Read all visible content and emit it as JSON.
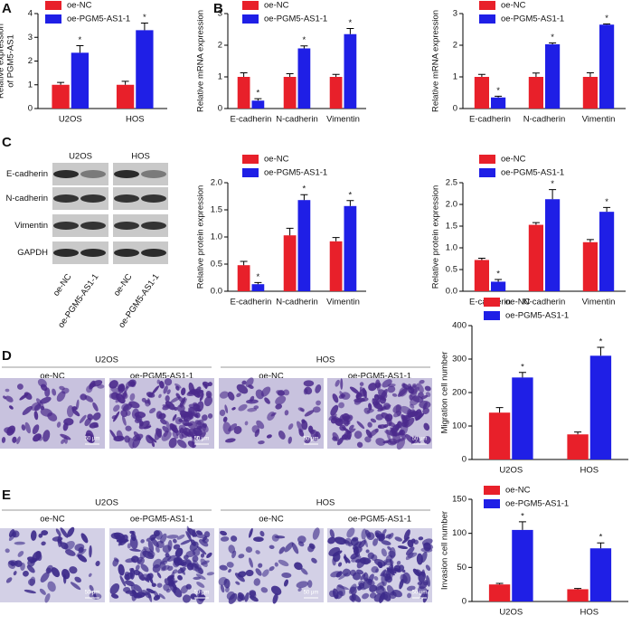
{
  "panel_letters": [
    "A",
    "B",
    "C",
    "D",
    "E"
  ],
  "blot": {
    "cell_lines": [
      "U2OS",
      "HOS"
    ],
    "proteins": [
      "E-cadherin",
      "N-cadherin",
      "Vimentin",
      "GAPDH"
    ],
    "lanes": [
      "oe-NC",
      "oe-PGM5-AS1-1",
      "oe-NC",
      "oe-PGM5-AS1-1"
    ]
  },
  "migration": {
    "cell_lines": [
      "U2OS",
      "HOS"
    ],
    "conditions": [
      "oe-NC",
      "oe-PGM5-AS1-1",
      "oe-NC",
      "oe-PGM5-AS1-1"
    ],
    "scale_bar": "50 μm"
  },
  "invasion": {
    "cell_lines": [
      "U2OS",
      "HOS"
    ],
    "conditions": [
      "oe-NC",
      "oe-PGM5-AS1-1",
      "oe-NC",
      "oe-PGM5-AS1-1"
    ],
    "scale_bar": "50 μm"
  },
  "chart_data": [
    {
      "type": "bar",
      "y_label": [
        "Relative expression",
        "of PGM5-AS1"
      ],
      "categories": [
        "U2OS",
        "HOS"
      ],
      "star_label": "*",
      "series": [
        {
          "name": "oe-NC",
          "color": "#e8202a",
          "values": [
            1.0,
            1.0
          ],
          "errors": [
            0.1,
            0.15
          ],
          "starred": false
        },
        {
          "name": "oe-PGM5-AS1-1",
          "color": "#1f1fe6",
          "values": [
            2.35,
            3.3
          ],
          "errors": [
            0.3,
            0.3
          ],
          "starred": true
        }
      ],
      "ylim": [
        0,
        4
      ],
      "yticks": [
        0,
        1,
        2,
        3,
        4
      ]
    },
    {
      "type": "bar",
      "y_label": [
        "Relative mRNA expression"
      ],
      "categories": [
        "E-cadherin",
        "N-cadherin",
        "Vimentin"
      ],
      "star_label": "*",
      "series": [
        {
          "name": "oe-NC",
          "color": "#e8202a",
          "values": [
            1.0,
            1.0,
            1.0
          ],
          "errors": [
            0.13,
            0.1,
            0.08
          ],
          "starred": false
        },
        {
          "name": "oe-PGM5-AS1-1",
          "color": "#1f1fe6",
          "values": [
            0.25,
            1.9,
            2.35
          ],
          "errors": [
            0.06,
            0.08,
            0.18
          ],
          "starred": true
        }
      ],
      "ylim": [
        0,
        3
      ],
      "yticks": [
        0,
        1,
        2,
        3
      ]
    },
    {
      "type": "bar",
      "y_label": [
        "Relative mRNA expression"
      ],
      "categories": [
        "E-cadherin",
        "N-cadherin",
        "Vimentin"
      ],
      "star_label": "*",
      "series": [
        {
          "name": "oe-NC",
          "color": "#e8202a",
          "values": [
            1.0,
            1.0,
            1.0
          ],
          "errors": [
            0.08,
            0.12,
            0.13
          ],
          "starred": false
        },
        {
          "name": "oe-PGM5-AS1-1",
          "color": "#1f1fe6",
          "values": [
            0.35,
            2.03,
            2.65
          ],
          "errors": [
            0.04,
            0.04,
            0.02
          ],
          "starred": true
        }
      ],
      "ylim": [
        0,
        3
      ],
      "yticks": [
        0,
        1,
        2,
        3
      ]
    },
    {
      "type": "bar",
      "y_label": [
        "Relative protein expression"
      ],
      "categories": [
        "E-cadherin",
        "N-cadherin",
        "Vimentin"
      ],
      "star_label": "*",
      "series": [
        {
          "name": "oe-NC",
          "color": "#e8202a",
          "values": [
            0.48,
            1.03,
            0.92
          ],
          "errors": [
            0.07,
            0.13,
            0.07
          ],
          "starred": false
        },
        {
          "name": "oe-PGM5-AS1-1",
          "color": "#1f1fe6",
          "values": [
            0.13,
            1.68,
            1.57
          ],
          "errors": [
            0.03,
            0.1,
            0.1
          ],
          "starred": true
        }
      ],
      "ylim": [
        0,
        2
      ],
      "yticks": [
        {
          "value": 0,
          "label": "0.0"
        },
        0.5,
        {
          "value": 1,
          "label": "1.0"
        },
        1.5,
        {
          "value": 2,
          "label": "2.0"
        }
      ]
    },
    {
      "type": "bar",
      "y_label": [
        "Relative protein expression"
      ],
      "categories": [
        "E-cadherin",
        "N-cadherin",
        "Vimentin"
      ],
      "star_label": "*",
      "series": [
        {
          "name": "oe-NC",
          "color": "#e8202a",
          "values": [
            0.72,
            1.53,
            1.13
          ],
          "errors": [
            0.04,
            0.05,
            0.06
          ],
          "starred": false
        },
        {
          "name": "oe-PGM5-AS1-1",
          "color": "#1f1fe6",
          "values": [
            0.22,
            2.12,
            1.83
          ],
          "errors": [
            0.05,
            0.22,
            0.1
          ],
          "starred": true
        }
      ],
      "ylim": [
        0,
        2.5
      ],
      "yticks": [
        {
          "value": 0,
          "label": "0.0"
        },
        0.5,
        {
          "value": 1,
          "label": "1.0"
        },
        1.5,
        {
          "value": 2,
          "label": "2.0"
        },
        2.5
      ]
    },
    {
      "type": "bar",
      "y_label": [
        "Migration cell number"
      ],
      "categories": [
        "U2OS",
        "HOS"
      ],
      "star_label": "*",
      "series": [
        {
          "name": "oe-NC",
          "color": "#e8202a",
          "values": [
            140,
            75
          ],
          "errors": [
            15,
            7
          ],
          "starred": false
        },
        {
          "name": "oe-PGM5-AS1-1",
          "color": "#1f1fe6",
          "values": [
            245,
            310
          ],
          "errors": [
            15,
            25
          ],
          "starred": true
        }
      ],
      "ylim": [
        0,
        400
      ],
      "yticks": [
        0,
        100,
        200,
        300,
        400
      ]
    },
    {
      "type": "bar",
      "y_label": [
        "Invasion cell number"
      ],
      "categories": [
        "U2OS",
        "HOS"
      ],
      "star_label": "*",
      "series": [
        {
          "name": "oe-NC",
          "color": "#e8202a",
          "values": [
            25,
            18
          ],
          "errors": [
            1.5,
            1
          ],
          "starred": false
        },
        {
          "name": "oe-PGM5-AS1-1",
          "color": "#1f1fe6",
          "values": [
            105,
            78
          ],
          "errors": [
            12,
            8
          ],
          "starred": true
        }
      ],
      "ylim": [
        0,
        150
      ],
      "yticks": [
        0,
        50,
        100,
        150
      ]
    }
  ]
}
